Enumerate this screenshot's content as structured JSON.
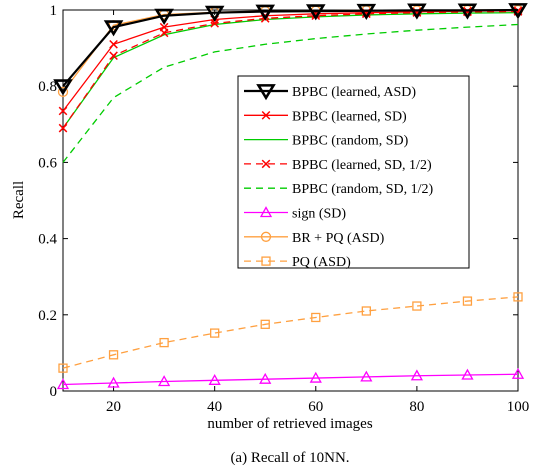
{
  "caption": "(a)  Recall of 10NN.",
  "chart_data": {
    "type": "line",
    "xlabel": "number of retrieved images",
    "ylabel": "Recall",
    "xlim": [
      10,
      100
    ],
    "ylim": [
      0,
      1
    ],
    "xticks": [
      20,
      40,
      60,
      80,
      100
    ],
    "yticks": [
      0,
      0.2,
      0.4,
      0.6,
      0.8,
      1
    ],
    "ytick_labels": [
      "0",
      "0.2",
      "0.4",
      "0.6",
      "0.8",
      "1"
    ],
    "xtick_labels": [
      "20",
      "40",
      "60",
      "80",
      "100"
    ],
    "grid": false,
    "legend_position": "center-right",
    "x": [
      10,
      20,
      30,
      40,
      50,
      60,
      70,
      80,
      90,
      100
    ],
    "series": [
      {
        "name": "BPBC (learned, ASD)",
        "color": "#000000",
        "dash": "solid",
        "marker": "triangle-down",
        "width": 2.2,
        "values": [
          0.8,
          0.955,
          0.985,
          0.993,
          0.996,
          0.997,
          0.998,
          0.999,
          0.999,
          1.0
        ]
      },
      {
        "name": "BPBC (learned, SD)",
        "color": "#ff0000",
        "dash": "solid",
        "marker": "x",
        "width": 1.3,
        "values": [
          0.735,
          0.91,
          0.955,
          0.975,
          0.985,
          0.99,
          0.993,
          0.995,
          0.997,
          0.998
        ]
      },
      {
        "name": "BPBC (random, SD)",
        "color": "#00cc00",
        "dash": "solid",
        "marker": "none",
        "width": 1.3,
        "values": [
          0.69,
          0.875,
          0.935,
          0.962,
          0.975,
          0.982,
          0.987,
          0.99,
          0.992,
          0.993
        ]
      },
      {
        "name": "BPBC (learned, SD, 1/2)",
        "color": "#ff0000",
        "dash": "dashed",
        "marker": "x",
        "width": 1.3,
        "values": [
          0.69,
          0.88,
          0.94,
          0.965,
          0.978,
          0.985,
          0.99,
          0.993,
          0.995,
          0.996
        ]
      },
      {
        "name": "BPBC (random, SD, 1/2)",
        "color": "#00cc00",
        "dash": "dashed",
        "marker": "none",
        "width": 1.3,
        "values": [
          0.6,
          0.77,
          0.85,
          0.89,
          0.91,
          0.925,
          0.937,
          0.947,
          0.955,
          0.962
        ]
      },
      {
        "name": "sign (SD)",
        "color": "#ff00ff",
        "dash": "solid",
        "marker": "triangle-up",
        "width": 1.3,
        "values": [
          0.017,
          0.021,
          0.025,
          0.028,
          0.031,
          0.034,
          0.037,
          0.04,
          0.042,
          0.044
        ]
      },
      {
        "name": "BR + PQ (ASD)",
        "color": "#ffa040",
        "dash": "solid",
        "marker": "circle",
        "width": 1.3,
        "values": [
          0.785,
          0.96,
          0.988,
          0.994,
          0.997,
          0.998,
          0.999,
          0.999,
          1.0,
          1.0
        ]
      },
      {
        "name": "PQ (ASD)",
        "color": "#ffa040",
        "dash": "dashed",
        "marker": "square",
        "width": 1.3,
        "values": [
          0.06,
          0.095,
          0.127,
          0.152,
          0.175,
          0.193,
          0.21,
          0.223,
          0.236,
          0.247
        ]
      }
    ]
  }
}
